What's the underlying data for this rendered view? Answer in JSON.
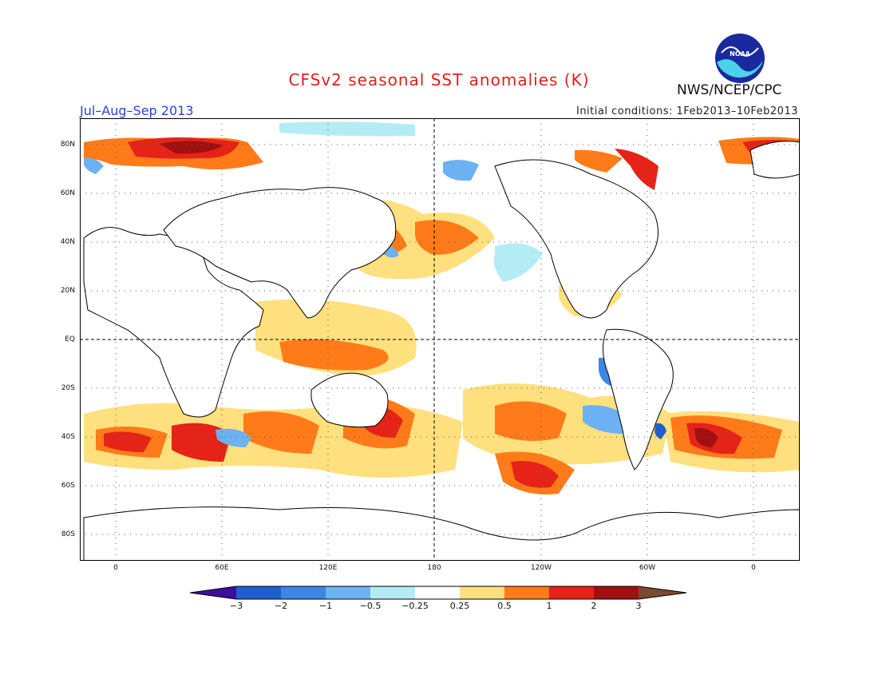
{
  "header": {
    "title": "CFSv2 seasonal SST anomalies (K)",
    "period": "Jul–Aug–Sep 2013",
    "initial_conditions": "Initial conditions: 1Feb2013–10Feb2013",
    "agency": "NWS/NCEP/CPC",
    "logo_text": "NOAA"
  },
  "map": {
    "lat_ticks": [
      "80N",
      "60N",
      "40N",
      "20N",
      "EQ",
      "20S",
      "40S",
      "60S",
      "80S"
    ],
    "lon_ticks": [
      "0",
      "60E",
      "120E",
      "180",
      "120W",
      "60W",
      "0"
    ]
  },
  "colorbar": {
    "labels": [
      "−3",
      "−2",
      "−1",
      "−0.5",
      "−0.25",
      "0.25",
      "0.5",
      "1",
      "2",
      "3"
    ],
    "colors": [
      "#3a0fa0",
      "#1f5fd0",
      "#3c86e6",
      "#6cb2f2",
      "#b4ecf6",
      "#ffffff",
      "#ffe07e",
      "#ff7b1a",
      "#e52318",
      "#a01010",
      "#7a4a32"
    ]
  }
}
